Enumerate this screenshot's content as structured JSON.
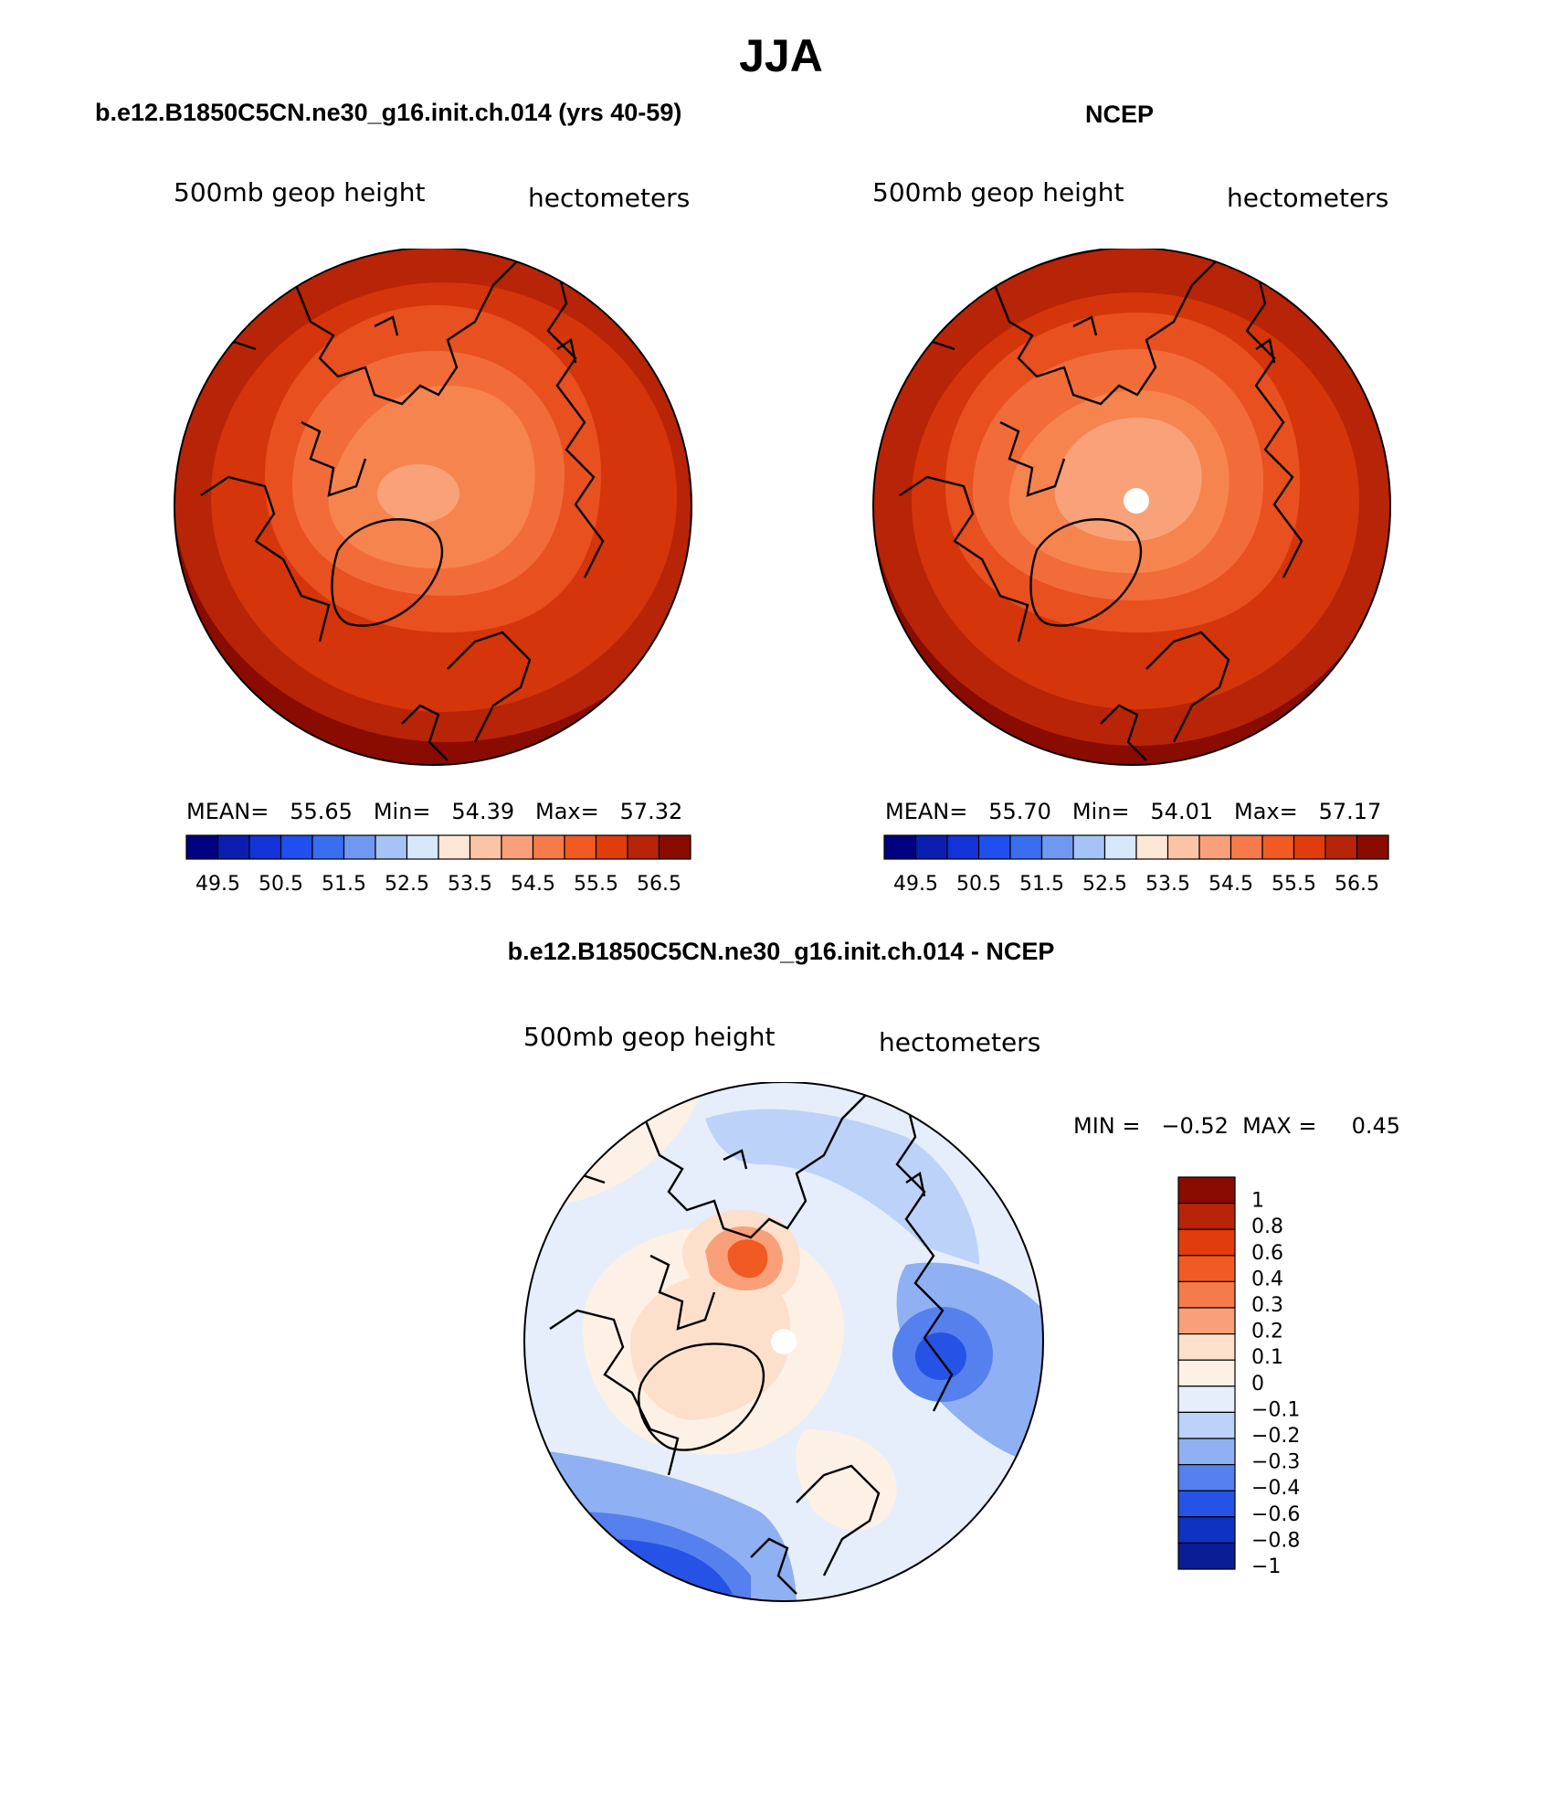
{
  "page": {
    "title": "JJA",
    "diff_title": "b.e12.B1850C5CN.ne30_g16.init.ch.014 - NCEP"
  },
  "chart_data": [
    {
      "type": "heatmap",
      "projection": "north polar stereographic",
      "title": "b.e12.B1850C5CN.ne30_g16.init.ch.014 (yrs 40-59)",
      "left_label": "500mb geop height",
      "right_label": "hectometers",
      "stats_text": "MEAN=   55.65   Min=   54.39   Max=   57.32",
      "stats": {
        "mean": 55.65,
        "min": 54.39,
        "max": 57.32
      },
      "colorbar_ticks": [
        "49.5",
        "50.5",
        "51.5",
        "52.5",
        "53.5",
        "54.5",
        "55.5",
        "56.5"
      ],
      "contour_levels": [
        54.0,
        54.5,
        55.0,
        55.5,
        56.0,
        56.5,
        57.0
      ]
    },
    {
      "type": "heatmap",
      "projection": "north polar stereographic",
      "title": "NCEP",
      "left_label": "500mb geop height",
      "right_label": "hectometers",
      "stats_text": "MEAN=   55.70   Min=   54.01   Max=   57.17",
      "stats": {
        "mean": 55.7,
        "min": 54.01,
        "max": 57.17
      },
      "colorbar_ticks": [
        "49.5",
        "50.5",
        "51.5",
        "52.5",
        "53.5",
        "54.5",
        "55.5",
        "56.5"
      ],
      "contour_levels": [
        54.0,
        54.5,
        55.0,
        55.5,
        56.0,
        56.5,
        57.0
      ]
    },
    {
      "type": "heatmap",
      "projection": "north polar stereographic",
      "title": "b.e12.B1850C5CN.ne30_g16.init.ch.014 - NCEP",
      "left_label": "500mb geop height",
      "right_label": "hectometers",
      "stats_text": "MIN =   −0.52  MAX =     0.45",
      "stats": {
        "min": -0.52,
        "max": 0.45
      },
      "colorbar_labels": [
        "1",
        "0.8",
        "0.6",
        "0.4",
        "0.3",
        "0.2",
        "0.1",
        "0",
        "−0.1",
        "−0.2",
        "−0.3",
        "−0.4",
        "−0.6",
        "−0.8",
        "−1"
      ],
      "contour_levels": [
        -1,
        -0.8,
        -0.6,
        -0.4,
        -0.3,
        -0.2,
        -0.1,
        0,
        0.1,
        0.2,
        0.3,
        0.4,
        0.6,
        0.8,
        1
      ]
    }
  ],
  "colors": {
    "scale16": [
      "#000080",
      "#0a1fb0",
      "#1233d8",
      "#1f4fee",
      "#3a6ef0",
      "#6e98f2",
      "#a6c3f6",
      "#d8e8fb",
      "#fde8d6",
      "#fbc4a4",
      "#f9a07a",
      "#f67b4a",
      "#f15a22",
      "#e03c0c",
      "#b82407",
      "#8a0b00"
    ],
    "diverging": [
      "#8a0b00",
      "#b82407",
      "#e03c0c",
      "#f15a22",
      "#f67b4a",
      "#f9a07a",
      "#fde0cc",
      "#fdf1e6",
      "#e6eefb",
      "#bcd2f8",
      "#8fb0f2",
      "#5580ee",
      "#2653e6",
      "#0f32c2",
      "#0a1d94"
    ]
  }
}
